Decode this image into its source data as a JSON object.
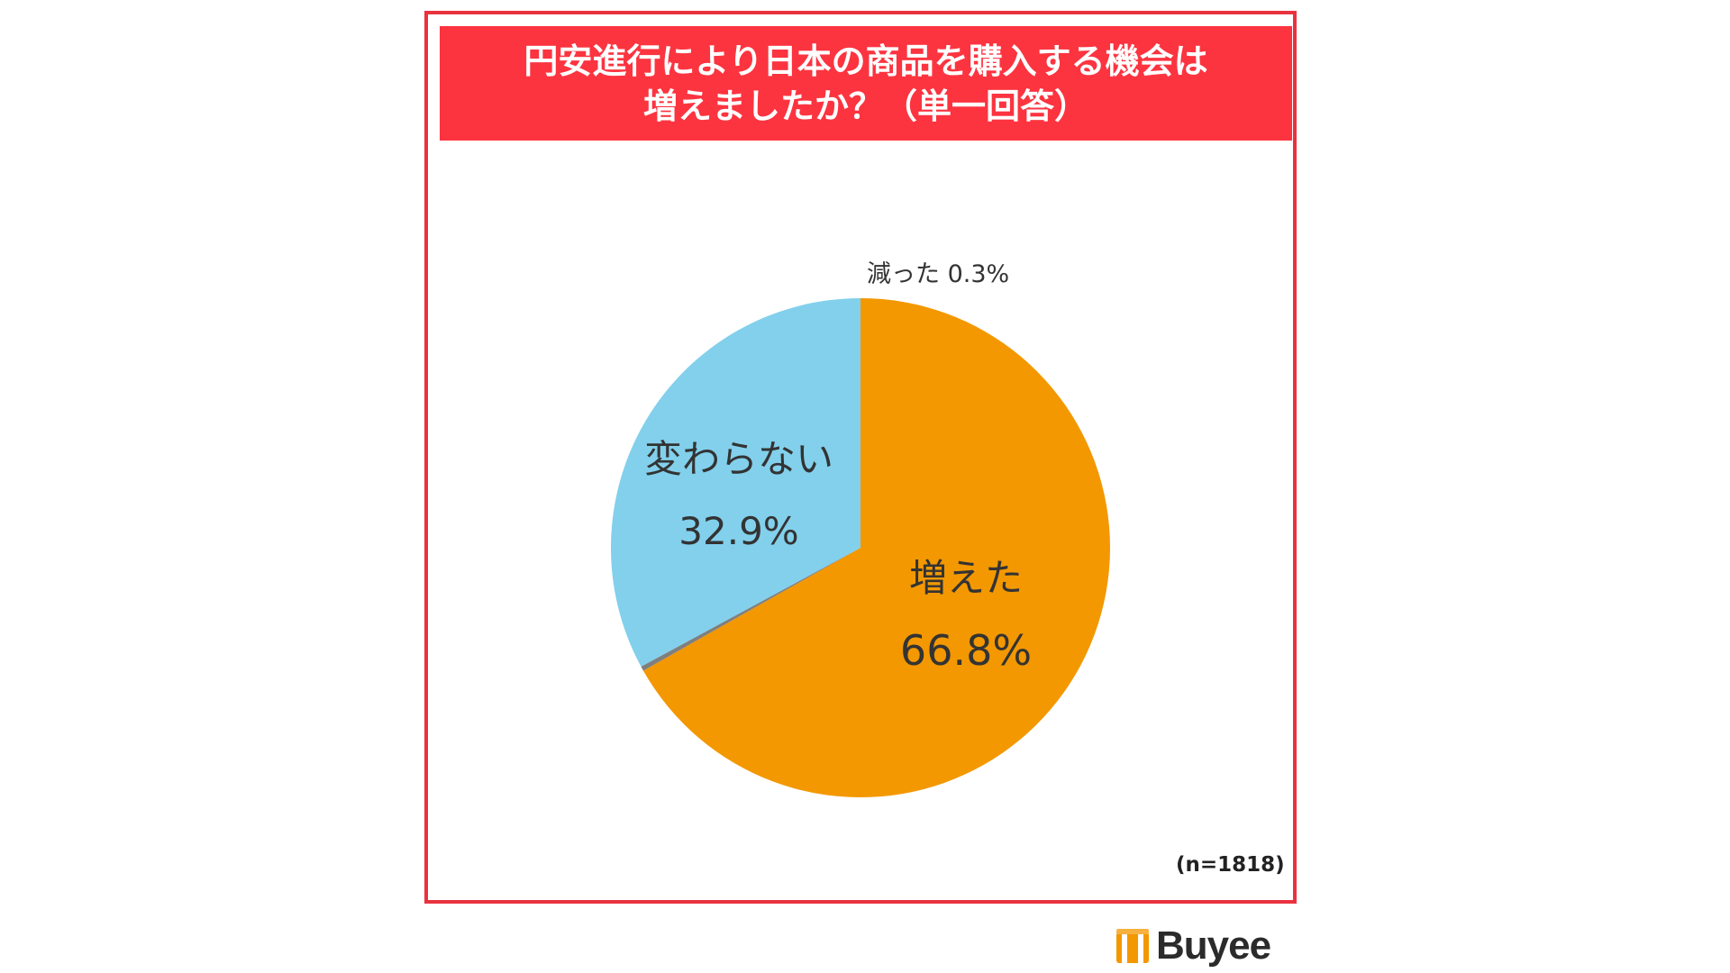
{
  "title": {
    "line1": "円安進行により日本の商品を購入する機会は",
    "line2": "増えましたか？（単一回答）"
  },
  "chart_data": {
    "type": "pie",
    "title": "円安進行により日本の商品を購入する機会は増えましたか？（単一回答）",
    "slices": [
      {
        "label": "増えた",
        "value": 66.8,
        "display": "66.8%",
        "color": "#f39800"
      },
      {
        "label": "減った",
        "value": 0.3,
        "display": "0.3%",
        "color": "#7f7f7f"
      },
      {
        "label": "変わらない",
        "value": 32.9,
        "display": "32.9%",
        "color": "#82d0ec"
      }
    ],
    "start": "12 o'clock",
    "direction": "clockwise",
    "note": "(n=1818)"
  },
  "small_label": "減った 0.3%",
  "logo": {
    "text": "Buyee",
    "color": "#f39800"
  }
}
